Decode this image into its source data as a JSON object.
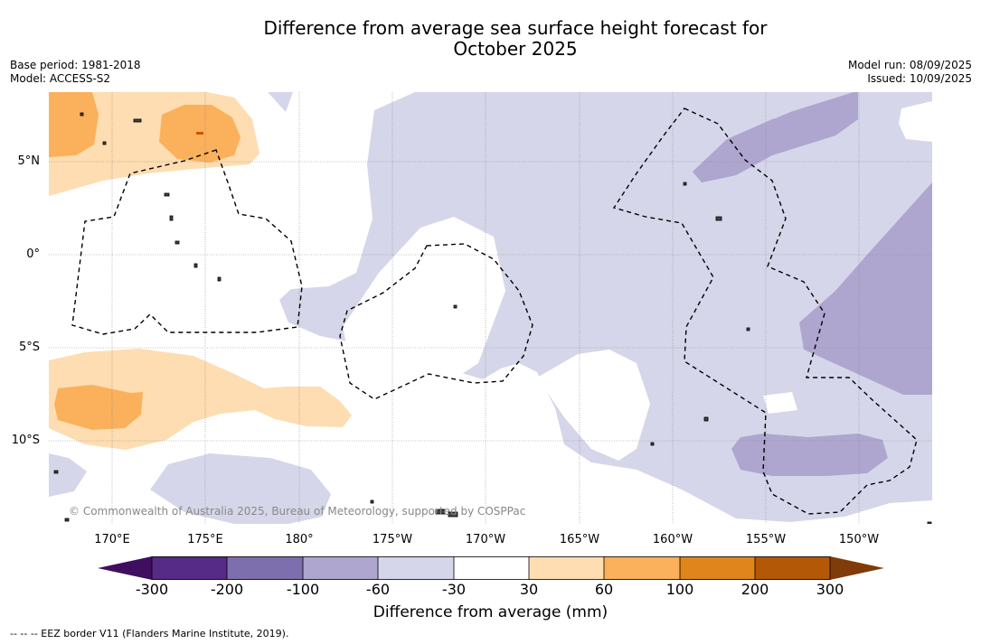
{
  "title_line1": "Difference from average sea surface height forecast for",
  "title_line2": "October 2025",
  "base_period": "Base period: 1981-2018",
  "model": "Model: ACCESS-S2",
  "model_run": "Model run: 08/09/2025",
  "issued": "Issued: 10/09/2025",
  "lat_labels": [
    "5°N",
    "0°",
    "5°S",
    "10°S"
  ],
  "lon_labels": [
    "170°E",
    "175°E",
    "180°",
    "175°W",
    "170°W",
    "165°W",
    "160°W",
    "155°W",
    "150°W"
  ],
  "copyright": "© Commonwealth of Australia 2025, Bureau of Meteorology, supported by COSPPac",
  "colorbar": {
    "ticks": [
      "-300",
      "-200",
      "-100",
      "-60",
      "-30",
      "30",
      "60",
      "100",
      "200",
      "300"
    ],
    "colors": [
      "#3f0e5e",
      "#562a87",
      "#7d6fad",
      "#aea6cf",
      "#d6d6ea",
      "#ffffff",
      "#fdddb1",
      "#fbb05b",
      "#e0841c",
      "#b35806",
      "#7f3b08"
    ],
    "label": "Difference from average (mm)"
  },
  "footnote": "-- -- -- EEZ border V11 (Flanders Marine Institute, 2019)."
}
